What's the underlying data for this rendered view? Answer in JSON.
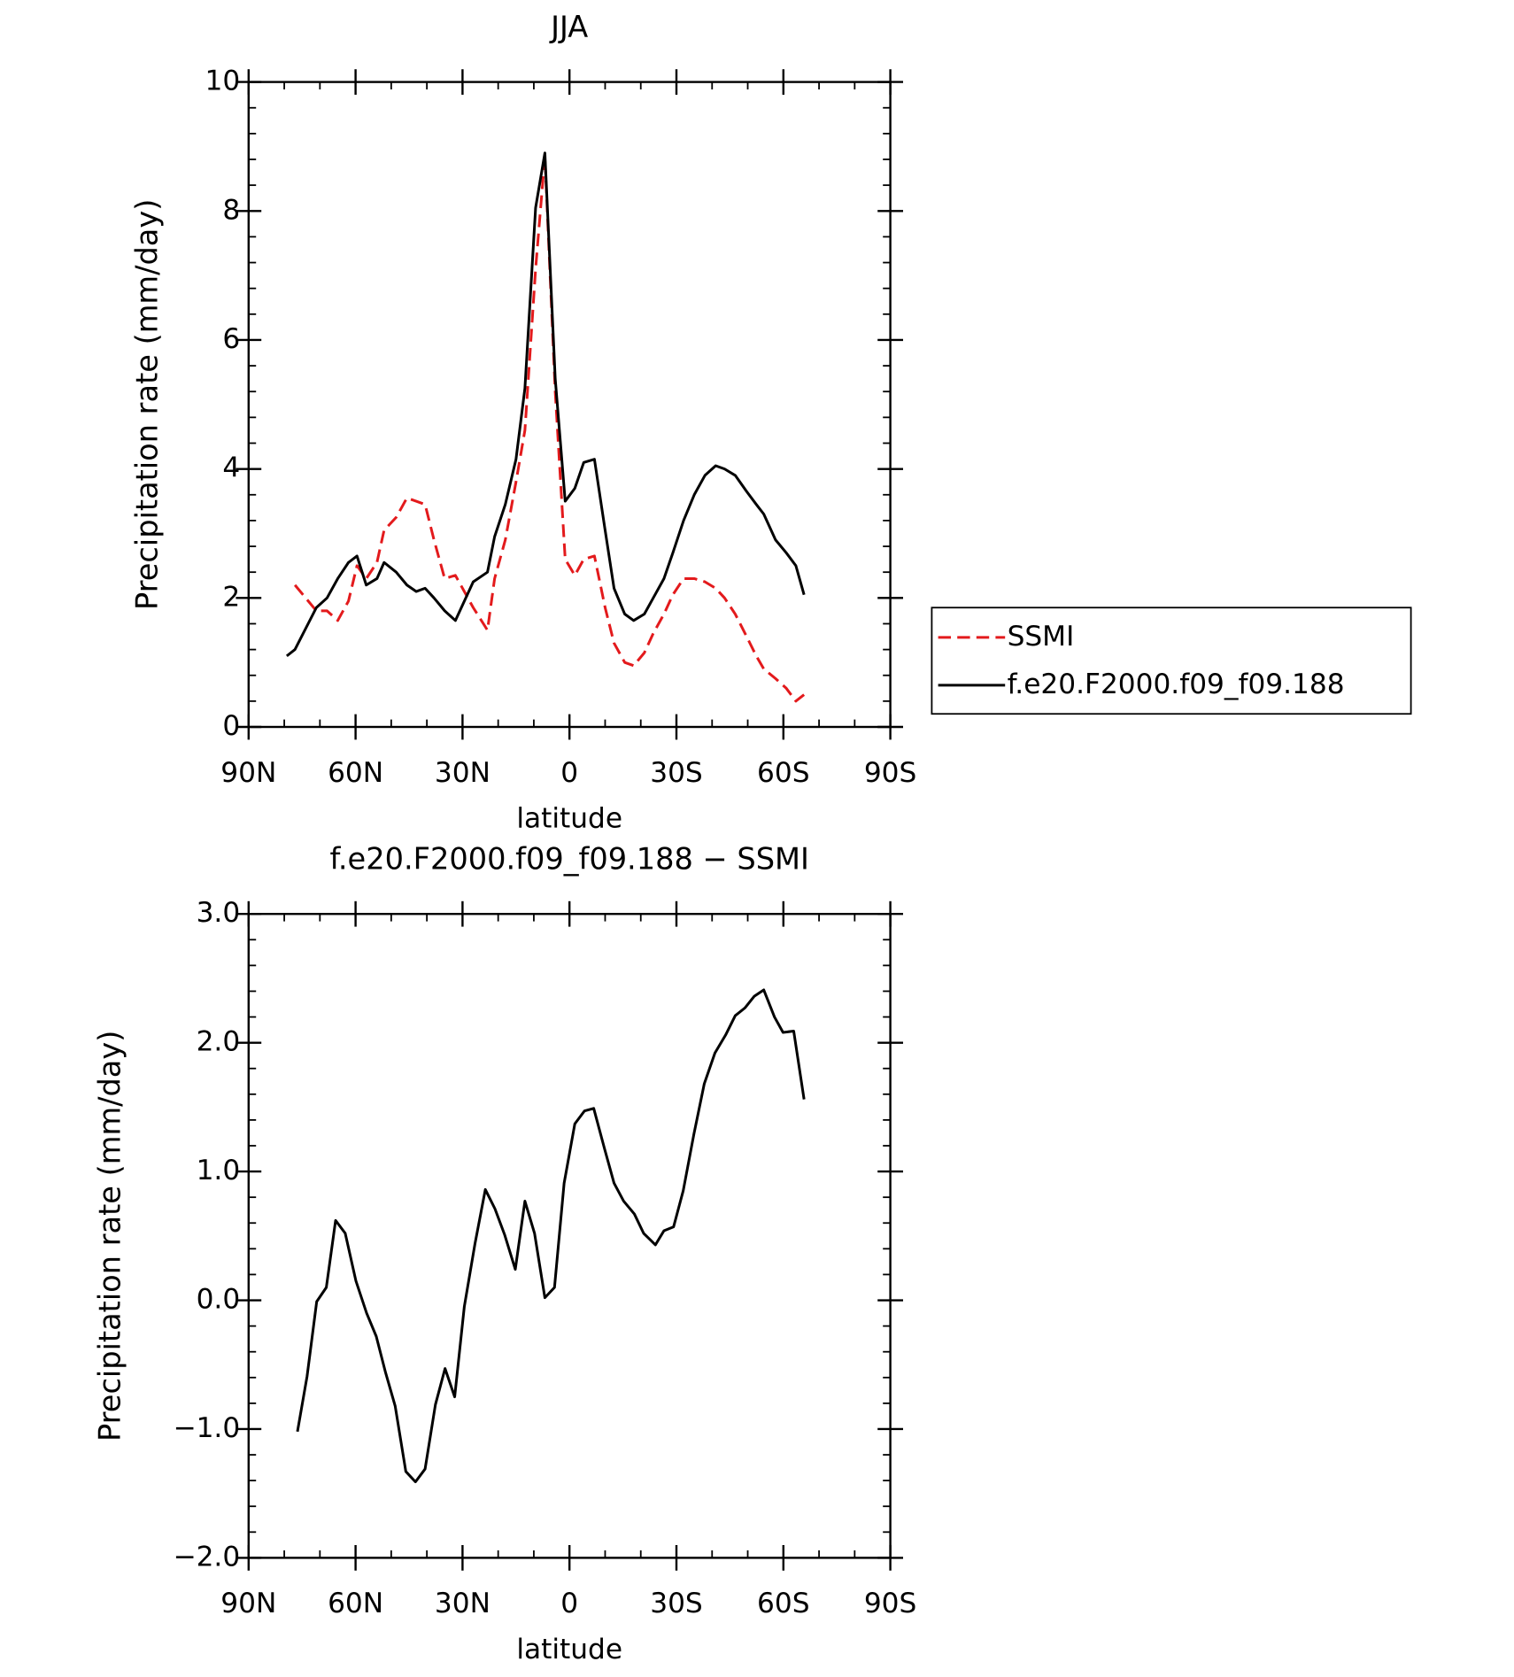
{
  "chart_data": [
    {
      "type": "line",
      "title": "JJA",
      "xlabel": "latitude",
      "ylabel": "Precipitation rate (mm/day)",
      "xlim": [
        90,
        -90
      ],
      "ylim": [
        0,
        10
      ],
      "xticks": [
        {
          "value": 90,
          "label": "90N"
        },
        {
          "value": 60,
          "label": "60N"
        },
        {
          "value": 30,
          "label": "30N"
        },
        0,
        {
          "value": -30,
          "label": "30S"
        },
        {
          "value": -60,
          "label": "60S"
        },
        {
          "value": -90,
          "label": "90S"
        }
      ],
      "yticks": [
        0,
        2,
        4,
        6,
        8,
        10
      ],
      "legend": "right",
      "x": [
        79.3,
        77,
        71,
        68,
        65,
        62,
        59.6,
        57,
        54,
        52,
        48.6,
        45.6,
        43,
        40.5,
        38,
        35,
        32,
        29.5,
        27,
        23,
        21,
        18,
        15,
        12.5,
        9.5,
        6.9,
        4,
        1.2,
        -1.5,
        -4,
        -7,
        -10,
        -12.5,
        -15.5,
        -18,
        -21,
        -23.5,
        -26.5,
        -29,
        -32,
        -35,
        -38,
        -41,
        -43.5,
        -46.5,
        -49.7,
        -52.4,
        -54.5,
        -57.8,
        -60.8,
        -63.5,
        -65.8
      ],
      "series": [
        {
          "name": "SSMI",
          "color": "#e31a1c",
          "dashed": true,
          "values": [
            null,
            2.2,
            1.8,
            1.8,
            1.65,
            1.95,
            2.5,
            2.3,
            2.55,
            3.05,
            3.25,
            3.55,
            3.5,
            3.45,
            2.9,
            2.3,
            2.35,
            2.1,
            1.85,
            1.5,
            2.3,
            2.9,
            3.8,
            4.6,
            7.1,
            8.85,
            5.2,
            2.6,
            2.35,
            2.6,
            2.65,
            1.85,
            1.3,
            1.0,
            0.95,
            1.15,
            1.45,
            1.75,
            2.05,
            2.3,
            2.3,
            2.25,
            2.15,
            2.0,
            1.75,
            1.4,
            1.1,
            0.9,
            0.75,
            0.6,
            0.4,
            0.5
          ]
        },
        {
          "name": "f.e20.F2000.f09_f09.188",
          "color": "#000000",
          "dashed": false,
          "values": [
            1.1,
            1.2,
            1.85,
            2.0,
            2.3,
            2.55,
            2.65,
            2.2,
            2.3,
            2.55,
            2.4,
            2.2,
            2.1,
            2.15,
            2.0,
            1.8,
            1.65,
            1.95,
            2.25,
            2.4,
            2.95,
            3.45,
            4.15,
            5.25,
            8.05,
            8.9,
            5.4,
            3.5,
            3.7,
            4.1,
            4.15,
            3.05,
            2.15,
            1.75,
            1.65,
            1.75,
            2.0,
            2.3,
            2.7,
            3.2,
            3.6,
            3.9,
            4.05,
            4.0,
            3.9,
            3.65,
            3.45,
            3.3,
            2.9,
            2.7,
            2.5,
            2.05
          ]
        }
      ]
    },
    {
      "type": "line",
      "title": "f.e20.F2000.f09_f09.188 − SSMI",
      "xlabel": "latitude",
      "ylabel": "Precipitation rate (mm/day)",
      "xlim": [
        90,
        -90
      ],
      "ylim": [
        -2,
        3
      ],
      "xticks": [
        {
          "value": 90,
          "label": "90N"
        },
        {
          "value": 60,
          "label": "60N"
        },
        {
          "value": 30,
          "label": "30N"
        },
        0,
        {
          "value": -30,
          "label": "30S"
        },
        {
          "value": -60,
          "label": "60S"
        },
        {
          "value": -90,
          "label": "90S"
        }
      ],
      "yticks": [
        {
          "value": -2,
          "label": "−2.0"
        },
        {
          "value": -1,
          "label": "−1.0"
        },
        {
          "value": 0,
          "label": "0.0"
        },
        {
          "value": 1,
          "label": "1.0"
        },
        {
          "value": 2,
          "label": "2.0"
        },
        {
          "value": 3,
          "label": "3.0"
        }
      ],
      "x": [
        76.3,
        73.6,
        70.9,
        68.2,
        65.6,
        62.9,
        59.9,
        56.9,
        54.2,
        51.6,
        48.9,
        45.9,
        43.2,
        40.5,
        37.6,
        34.9,
        32.2,
        29.5,
        26.5,
        23.6,
        20.9,
        18.2,
        15.2,
        12.5,
        9.8,
        6.9,
        4.2,
        1.5,
        -1.5,
        -4.2,
        -6.8,
        -9.8,
        -12.5,
        -15.2,
        -18.2,
        -20.8,
        -24.1,
        -26.5,
        -29.2,
        -31.9,
        -34.9,
        -37.8,
        -40.8,
        -43.8,
        -46.5,
        -49.2,
        -51.8,
        -54.5,
        -57.5,
        -59.9,
        -62.9,
        -65.8
      ],
      "color": "#000000",
      "values": [
        -1.02,
        -0.59,
        -0.01,
        0.1,
        0.62,
        0.52,
        0.15,
        -0.1,
        -0.28,
        -0.56,
        -0.82,
        -1.33,
        -1.41,
        -1.31,
        -0.81,
        -0.53,
        -0.75,
        -0.05,
        0.44,
        0.86,
        0.71,
        0.51,
        0.24,
        0.77,
        0.52,
        0.02,
        0.1,
        0.91,
        1.37,
        1.47,
        1.49,
        1.18,
        0.91,
        0.77,
        0.67,
        0.52,
        0.43,
        0.54,
        0.57,
        0.85,
        1.29,
        1.68,
        1.92,
        2.06,
        2.21,
        2.27,
        2.36,
        2.41,
        2.2,
        2.08,
        2.09,
        1.56
      ]
    }
  ]
}
